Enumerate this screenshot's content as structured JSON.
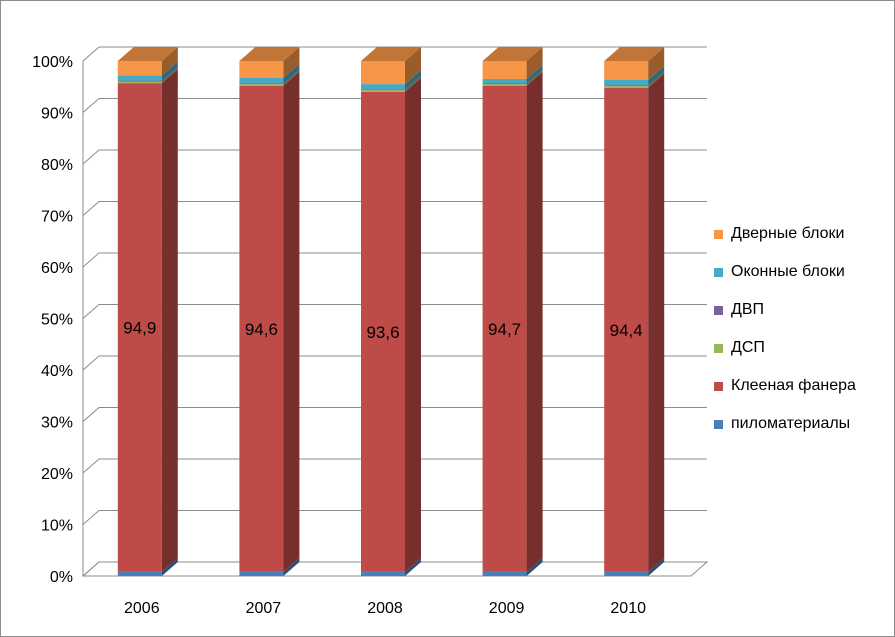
{
  "chart_data": {
    "type": "bar",
    "stacked": "percent",
    "three_d": true,
    "categories": [
      "2006",
      "2007",
      "2008",
      "2009",
      "2010"
    ],
    "y_tick_labels": [
      "0%",
      "10%",
      "20%",
      "30%",
      "40%",
      "50%",
      "60%",
      "70%",
      "80%",
      "90%",
      "100%"
    ],
    "ylim": [
      0,
      100
    ],
    "grid": true,
    "legend_position": "right",
    "series": [
      {
        "name": "пиломатериалы",
        "color": "#4a7ebb",
        "values": [
          0.8,
          0.8,
          0.8,
          0.8,
          0.8
        ]
      },
      {
        "name": "Клееная фанера",
        "color": "#be4b48",
        "values": [
          94.9,
          94.6,
          93.6,
          94.7,
          94.4
        ]
      },
      {
        "name": "ДСП",
        "color": "#98b954",
        "values": [
          0.3,
          0.3,
          0.3,
          0.3,
          0.3
        ]
      },
      {
        "name": "ДВП",
        "color": "#7d60a0",
        "values": [
          0.2,
          0.2,
          0.2,
          0.2,
          0.2
        ]
      },
      {
        "name": "Оконные блоки",
        "color": "#46aac5",
        "values": [
          1.0,
          1.0,
          1.0,
          0.8,
          1.0
        ]
      },
      {
        "name": "Дверные блоки",
        "color": "#f79646",
        "values": [
          2.8,
          3.3,
          4.5,
          3.5,
          3.7
        ]
      }
    ],
    "data_labels": {
      "series": "Клееная фанера",
      "texts": [
        "94,9",
        "94,6",
        "93,6",
        "94,7",
        "94,4"
      ]
    }
  }
}
